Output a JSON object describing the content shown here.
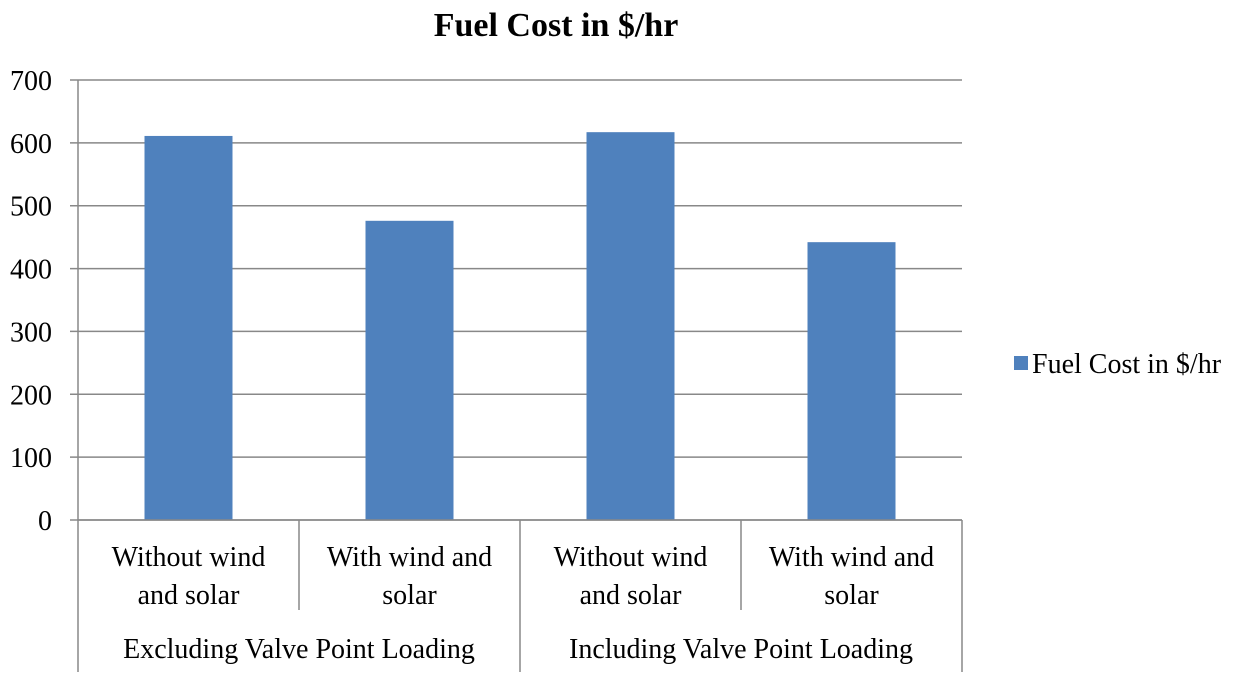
{
  "chart_data": {
    "type": "bar",
    "title": "Fuel Cost in $/hr",
    "xlabel": "",
    "ylabel": "",
    "ylim": [
      0,
      700
    ],
    "yticks": [
      "0",
      "100",
      "200",
      "300",
      "400",
      "500",
      "600",
      "700"
    ],
    "grid": true,
    "legend_position": "right",
    "categories": [
      {
        "label_lines": [
          "Without wind",
          "and solar"
        ],
        "group": "Excluding Valve Point Loading"
      },
      {
        "label_lines": [
          "With wind and",
          "solar"
        ],
        "group": "Excluding Valve Point Loading"
      },
      {
        "label_lines": [
          "Without wind",
          "and solar"
        ],
        "group": "Including Valve Point Loading"
      },
      {
        "label_lines": [
          "With wind and",
          "solar"
        ],
        "group": "Including Valve Point Loading"
      }
    ],
    "groups": [
      "Excluding Valve Point Loading",
      "Including Valve Point Loading"
    ],
    "series": [
      {
        "name": "Fuel Cost in $/hr",
        "values": [
          611,
          476,
          617,
          442
        ],
        "color": "#4F81BD"
      }
    ]
  },
  "colors": {
    "bar": "#4F81BD",
    "grid": "#888888",
    "axis": "#888888"
  }
}
